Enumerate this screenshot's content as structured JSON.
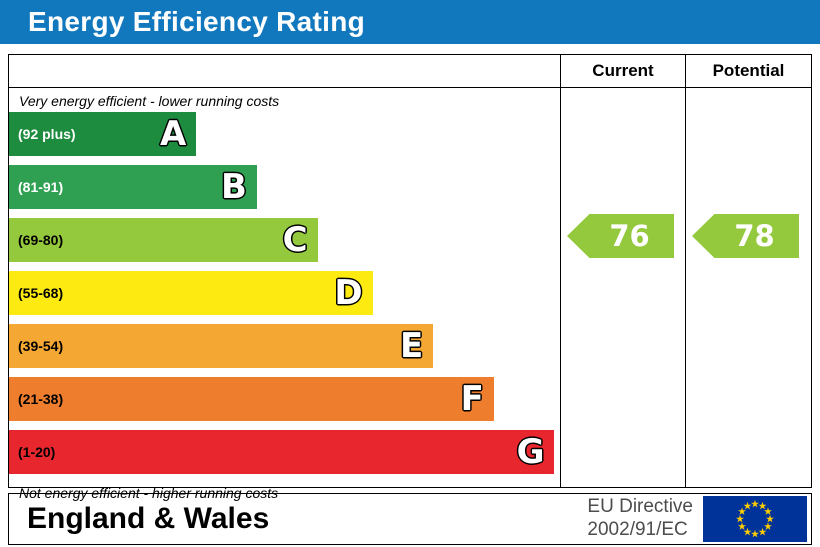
{
  "title": "Energy Efficiency Rating",
  "header": {
    "current": "Current",
    "potential": "Potential"
  },
  "notes": {
    "top": "Very energy efficient - lower running costs",
    "bottom": "Not energy efficient - higher running costs"
  },
  "bands": [
    {
      "letter": "A",
      "range": "(92 plus)",
      "color": "#1e8c3e",
      "range_text_color": "#ffffff",
      "width_pct": 34
    },
    {
      "letter": "B",
      "range": "(81-91)",
      "color": "#2fa052",
      "range_text_color": "#ffffff",
      "width_pct": 45
    },
    {
      "letter": "C",
      "range": "(69-80)",
      "color": "#94c83d",
      "range_text_color": "#000000",
      "width_pct": 56
    },
    {
      "letter": "D",
      "range": "(55-68)",
      "color": "#fcea10",
      "range_text_color": "#000000",
      "width_pct": 66
    },
    {
      "letter": "E",
      "range": "(39-54)",
      "color": "#f5a733",
      "range_text_color": "#000000",
      "width_pct": 77
    },
    {
      "letter": "F",
      "range": "(21-38)",
      "color": "#ee7d2d",
      "range_text_color": "#000000",
      "width_pct": 88
    },
    {
      "letter": "G",
      "range": "(1-20)",
      "color": "#e8262d",
      "range_text_color": "#000000",
      "width_pct": 99
    }
  ],
  "ratings": {
    "current": {
      "value": "76",
      "band": "C",
      "color": "#94c83d"
    },
    "potential": {
      "value": "78",
      "band": "C",
      "color": "#94c83d"
    }
  },
  "footer": {
    "region": "England & Wales",
    "directive": [
      "EU Directive",
      "2002/91/EC"
    ]
  },
  "flag": {
    "icon": "eu-flag-icon",
    "background": "#003399",
    "star_color": "#ffcc00",
    "star_count": 12
  },
  "colors": {
    "title_bar": "#1278be",
    "title_text": "#ffffff",
    "border": "#000000"
  },
  "chart_data": {
    "type": "bar",
    "title": "Energy Efficiency Rating",
    "categories": [
      "A (92 plus)",
      "B (81-91)",
      "C (69-80)",
      "D (55-68)",
      "E (39-54)",
      "F (21-38)",
      "G (1-20)"
    ],
    "values": [
      34,
      45,
      56,
      66,
      77,
      88,
      99
    ],
    "value_note": "values are relative band bar widths in percent; bands map to score ranges 92+, 81-91, 69-80, 55-68, 39-54, 21-38, 1-20",
    "series": [
      {
        "name": "Current",
        "value": 76,
        "band": "C"
      },
      {
        "name": "Potential",
        "value": 78,
        "band": "C"
      }
    ],
    "annotations": [
      "Very energy efficient - lower running costs",
      "Not energy efficient - higher running costs"
    ],
    "legend_position": "none",
    "grid": false
  }
}
